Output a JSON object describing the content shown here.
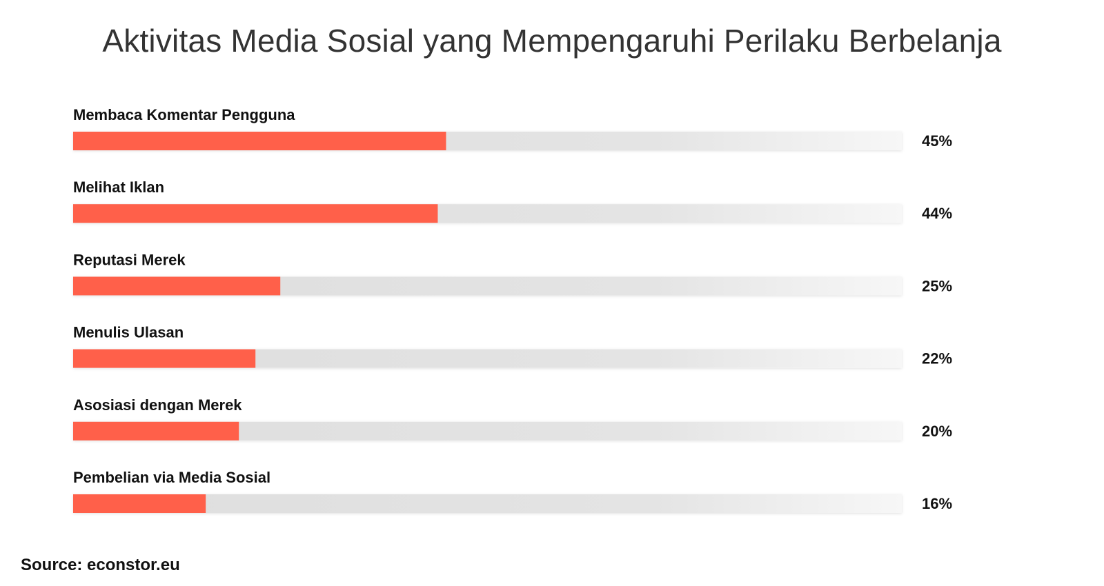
{
  "chart_data": {
    "type": "bar",
    "orientation": "horizontal",
    "title": "Aktivitas Media Sosial yang Mempengaruhi Perilaku Berbelanja",
    "categories": [
      "Membaca Komentar Pengguna",
      "Melihat Iklan",
      "Reputasi Merek",
      "Menulis Ulasan",
      "Asosiasi dengan Merek",
      "Pembelian via Media Sosial"
    ],
    "values": [
      45,
      44,
      25,
      22,
      20,
      16
    ],
    "value_labels": [
      "45%",
      "44%",
      "25%",
      "22%",
      "20%",
      "16%"
    ],
    "xlim": [
      0,
      100
    ],
    "unit": "%",
    "grid": false,
    "legend": "none",
    "colors": {
      "bar": "#ff604a",
      "track_start": "#dedede",
      "track_end": "#f7f7f7"
    }
  },
  "source": "Source: econstor.eu"
}
